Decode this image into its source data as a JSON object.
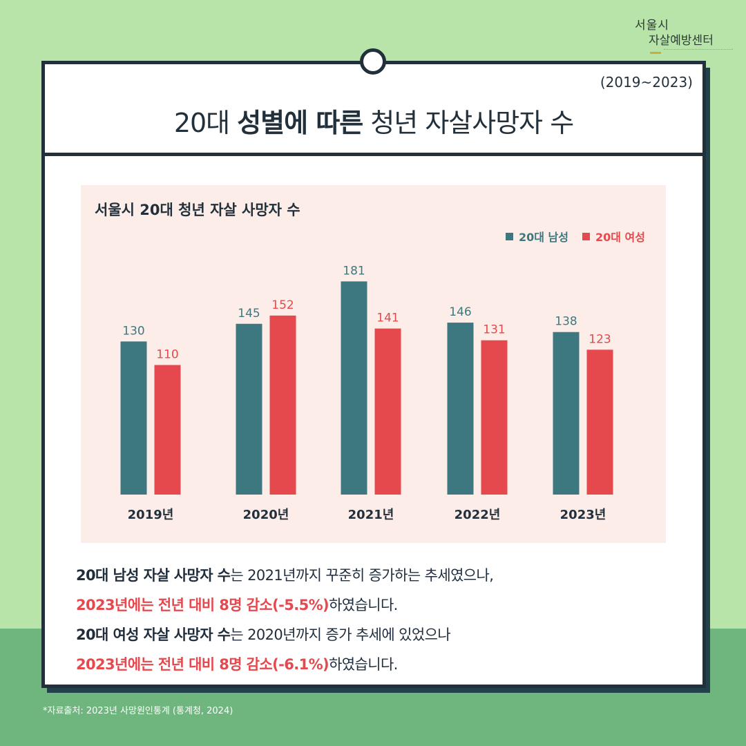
{
  "logo": {
    "line1": "서울시",
    "line2": "자살예방센터"
  },
  "header": {
    "period": "(2019~2023)",
    "title_prefix": "20대 ",
    "title_bold": "성별에 따른",
    "title_suffix": " 청년 자살사망자 수"
  },
  "colors": {
    "male": "#3d7880",
    "female": "#e5484d",
    "panel": "#fdede8",
    "frame": "#22303c"
  },
  "chart_data": {
    "type": "bar",
    "title": "서울시 20대 청년 자살 사망자 수",
    "categories": [
      "2019년",
      "2020년",
      "2021년",
      "2022년",
      "2023년"
    ],
    "series": [
      {
        "name": "20대 남성",
        "values": [
          130,
          145,
          181,
          146,
          138
        ]
      },
      {
        "name": "20대 여성",
        "values": [
          110,
          152,
          141,
          131,
          123
        ]
      }
    ],
    "ylim": [
      0,
      200
    ],
    "legend": "top-right",
    "grid": false
  },
  "summary": {
    "line1_bold": "20대 남성 자살 사망자 수",
    "line1_rest": "는 2021년까지 꾸준히 증가하는 추세였으나,",
    "line2_red": "2023년에는 전년 대비 8명 감소(-5.5%)",
    "line2_rest": "하였습니다.",
    "line3_bold": "20대 여성 자살 사망자 수",
    "line3_rest": "는 2020년까지 증가 추세에 있었으나",
    "line4_red": "2023년에는 전년 대비 8명 감소(-6.1%)",
    "line4_rest": "하였습니다."
  },
  "source": "*자료출처: 2023년 사망원인통계 (통계청, 2024)"
}
